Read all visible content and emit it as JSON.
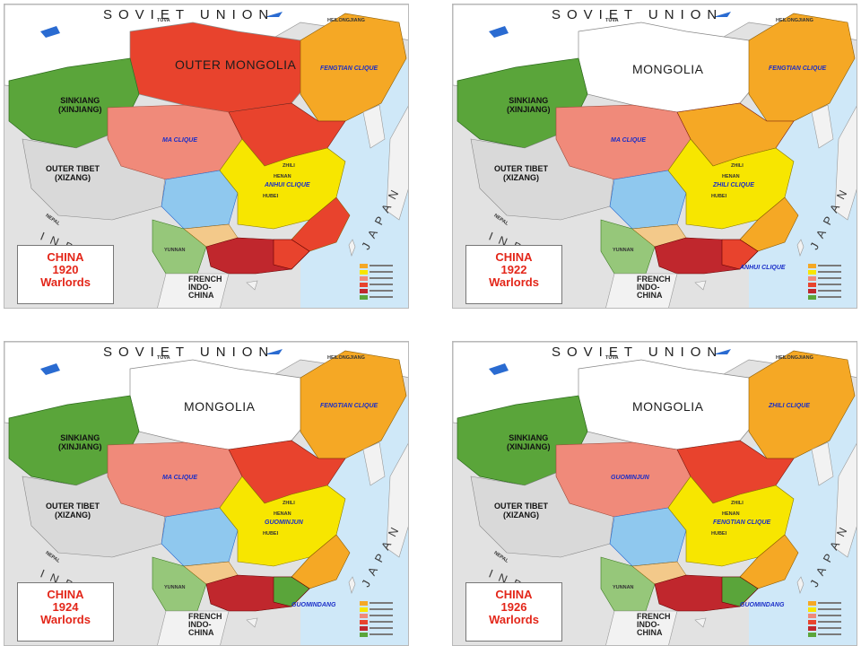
{
  "country_label": "SOVIET UNION",
  "panels": [
    {
      "title": [
        "CHINA",
        "1920",
        "Warlords"
      ],
      "mongolia": "OUTER MONGOLIA",
      "sinkiang": [
        "SINKIANG",
        "(XINJIANG)"
      ],
      "tibet": [
        "OUTER TIBET",
        "(XIZANG)"
      ],
      "cliques": [
        "MA CLIQUE",
        "ANHUI CLIQUE",
        "FENGTIAN CLIQUE"
      ],
      "colors": {
        "north": "#e8432d",
        "northeast": "#f5a825",
        "center": "#f7e600",
        "south": "#e8432d"
      }
    },
    {
      "title": [
        "CHINA",
        "1922",
        "Warlords"
      ],
      "mongolia": "MONGOLIA",
      "sinkiang": [
        "SINKIANG",
        "(XINJIANG)"
      ],
      "tibet": [
        "OUTER TIBET",
        "(XIZANG)"
      ],
      "cliques": [
        "MA CLIQUE",
        "ZHILI CLIQUE",
        "FENGTIAN CLIQUE",
        "ANHUI CLIQUE"
      ],
      "colors": {
        "north": "#f5a825",
        "northeast": "#f5a825",
        "center": "#f7e600",
        "south": "#e8432d"
      }
    },
    {
      "title": [
        "CHINA",
        "1924",
        "Warlords"
      ],
      "mongolia": "MONGOLIA",
      "sinkiang": [
        "SINKIANG",
        "(XINJIANG)"
      ],
      "tibet": [
        "OUTER TIBET",
        "(XIZANG)"
      ],
      "cliques": [
        "MA CLIQUE",
        "GUOMINJUN",
        "FENGTIAN CLIQUE",
        "GUOMINDANG"
      ],
      "colors": {
        "north": "#e8432d",
        "northeast": "#f5a825",
        "center": "#f7e600",
        "south": "#5aa53a"
      }
    },
    {
      "title": [
        "CHINA",
        "1926",
        "Warlords"
      ],
      "mongolia": "MONGOLIA",
      "sinkiang": [
        "SINKIANG",
        "(XINJIANG)"
      ],
      "tibet": [
        "OUTER TIBET",
        "(XIZANG)"
      ],
      "cliques": [
        "GUOMINJUN",
        "FENGTIAN CLIQUE",
        "ZHILI CLIQUE",
        "GUOMINDANG"
      ],
      "colors": {
        "north": "#e8432d",
        "northeast": "#f5a825",
        "center": "#f7e600",
        "south": "#5aa53a"
      }
    }
  ],
  "place_labels": {
    "tuva": "TUVA",
    "india": "INDIA",
    "nepal": "NEPAL",
    "japan": "JAPAN",
    "french_indochina": [
      "FRENCH",
      "INDO-",
      "CHINA"
    ],
    "heilongjiang": "HEILONGJIANG",
    "yunnan": "YUNNAN",
    "hubei": "HUBEI",
    "henan": "HENAN",
    "zhili": "ZHILI"
  },
  "palette": {
    "sinkiang": "#5aa53a",
    "ma": "#f08a7a",
    "tibet": "#d9d9d9",
    "sichuan": "#8fc8ee",
    "yunnan": "#96c77a",
    "guangxi": "#c0272d",
    "sea": "#cfe8f8",
    "ussr": "#ffffff"
  }
}
